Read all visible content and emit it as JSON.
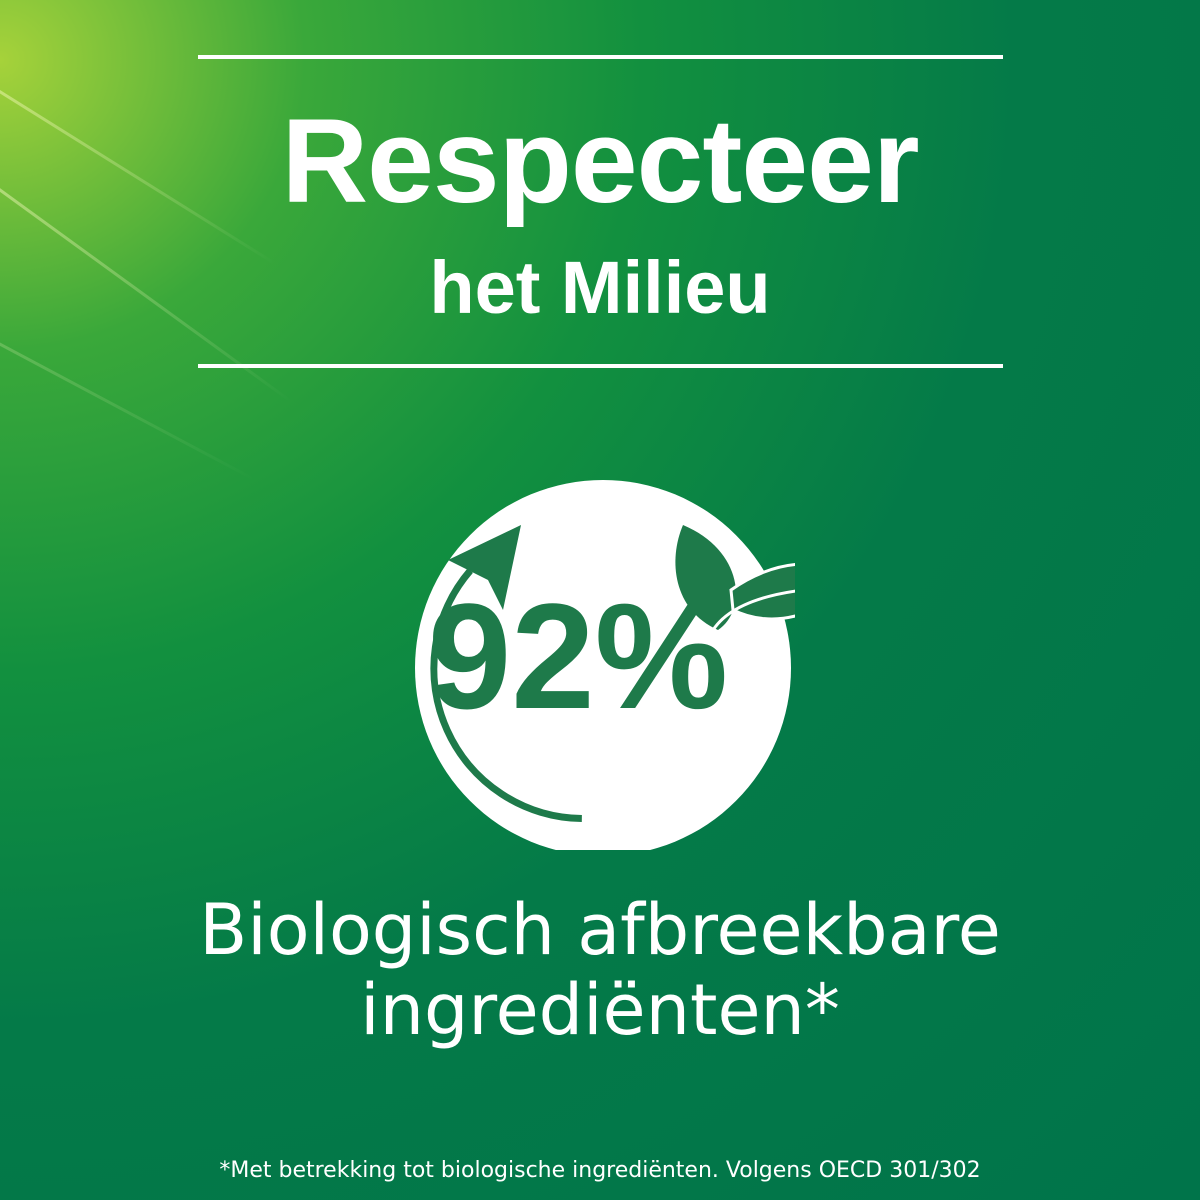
{
  "headline": {
    "line1": "Respecteer",
    "line2": "het Milieu"
  },
  "badge": {
    "percentage": "92%",
    "icons": [
      "circular-arrow-icon",
      "leaves-icon"
    ]
  },
  "subtitle": {
    "line1": "Biologisch afbreekbare",
    "line2": "ingrediënten*"
  },
  "footnote": "*Met betrekking tot biologische ingrediënten. Volgens OECD 301/302",
  "colors": {
    "background": "#00744a",
    "accent": "#1e7a4a",
    "text": "#ffffff"
  }
}
